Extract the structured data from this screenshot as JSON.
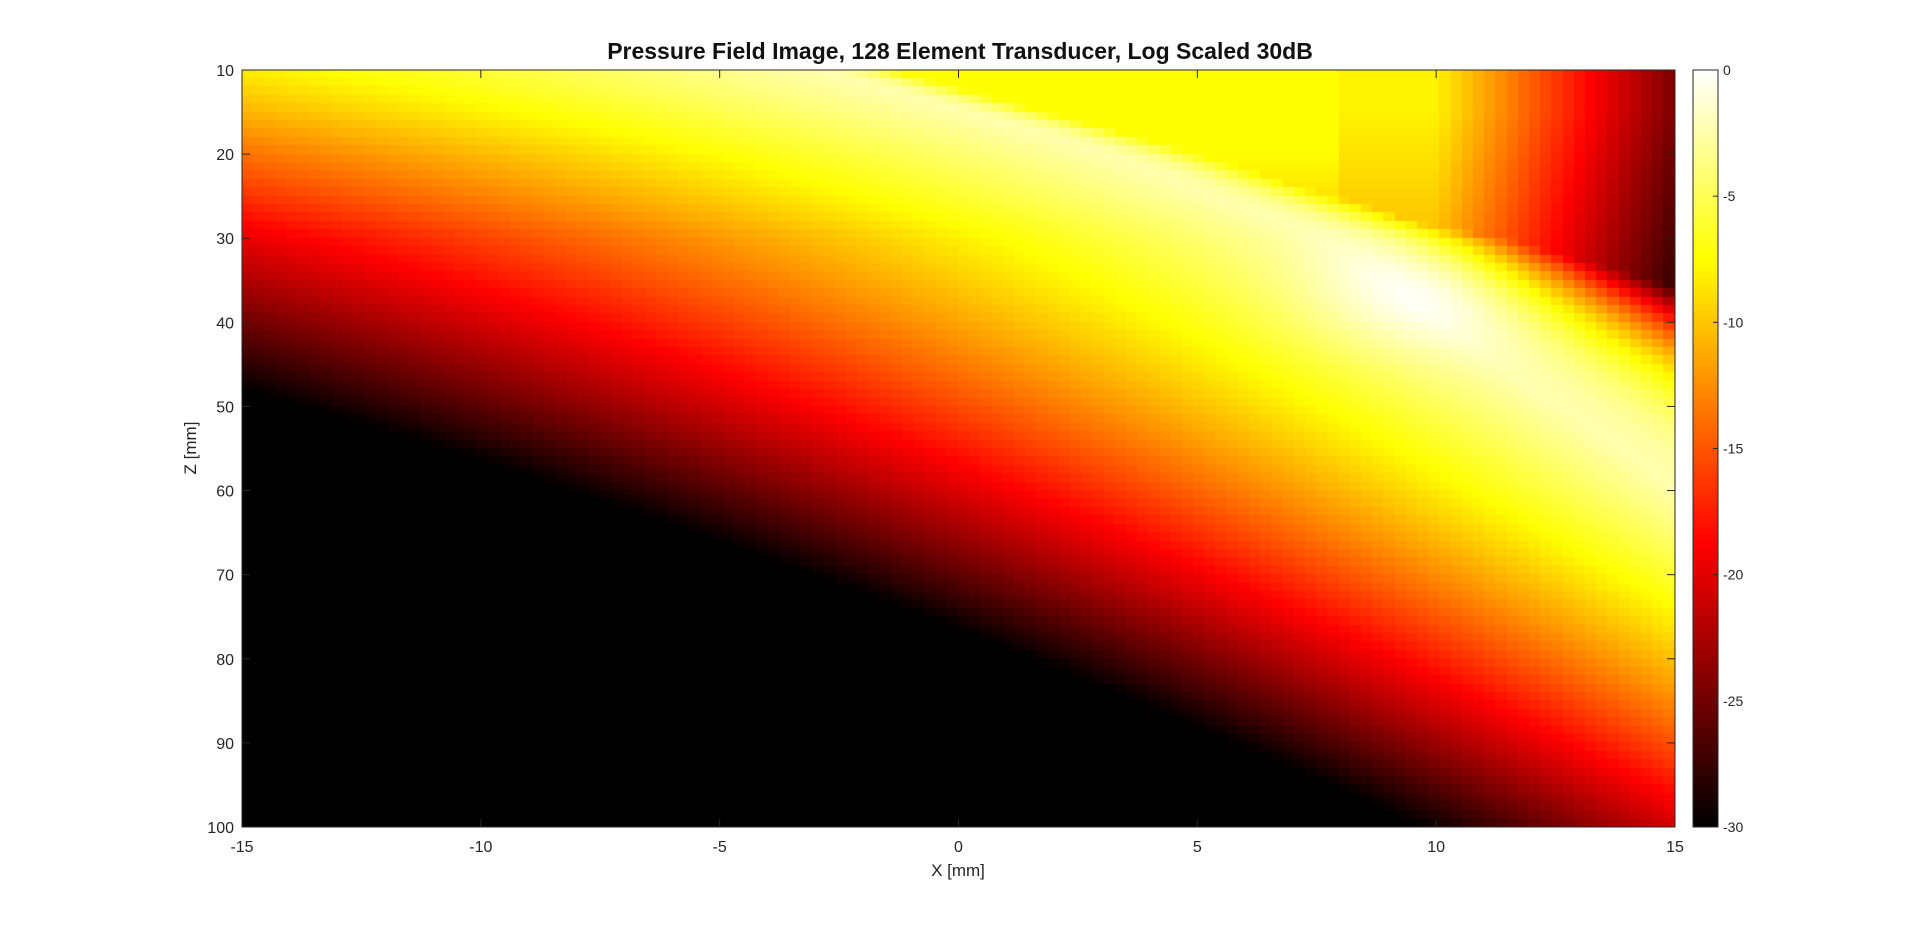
{
  "chart_data": {
    "type": "heatmap",
    "title": "Pressure Field Image, 128 Element Transducer, Log Scaled 30dB",
    "xlabel": "X [mm]",
    "ylabel": "Z [mm]",
    "xlim": [
      -15,
      15
    ],
    "ylim": [
      10,
      100
    ],
    "y_direction": "reversed",
    "x_ticks": [
      -15,
      -10,
      -5,
      0,
      5,
      10,
      15
    ],
    "y_ticks": [
      10,
      20,
      30,
      40,
      50,
      60,
      70,
      80,
      90,
      100
    ],
    "colorbar": {
      "min": -30,
      "max": 0,
      "ticks": [
        0,
        -5,
        -10,
        -15,
        -20,
        -25,
        -30
      ],
      "colormap": "hot",
      "colors": [
        "#000000",
        "#ff0000",
        "#ffff00",
        "#ffffff"
      ]
    },
    "field_features": {
      "steered_beam_path_mm": [
        [
          -3,
          10
        ],
        [
          3,
          20
        ],
        [
          7.5,
          30
        ],
        [
          10,
          40
        ],
        [
          12.5,
          50
        ],
        [
          14.5,
          58
        ]
      ],
      "focal_peak_mm": [
        9.5,
        37
      ],
      "focal_peak_db": 0,
      "near_field_bright_region_x_mm": [
        -2,
        7.5
      ],
      "grating_lobe_band_x_mm": [
        8,
        10
      ],
      "grid": false
    }
  }
}
